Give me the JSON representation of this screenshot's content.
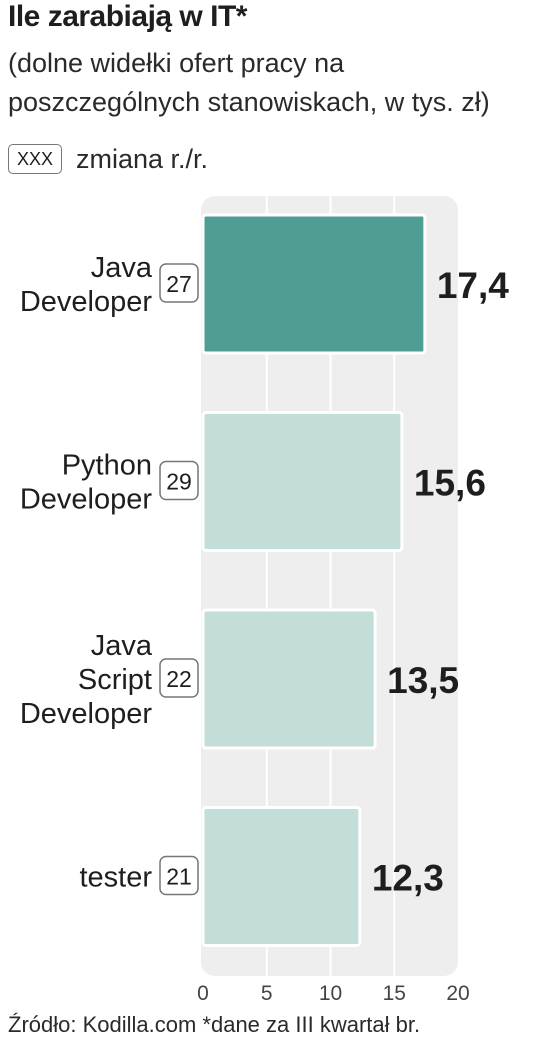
{
  "title": "Ile zarabiają w IT*",
  "subtitle": "(dolne widełki ofert pracy na poszczególnych stanowiskach, w tys. zł)",
  "legend": {
    "box_text": "XXX",
    "label": "zmiana r./r."
  },
  "source": "Źródło: Kodilla.com *dane za III kwartał br.",
  "colors": {
    "highlight_bar": "#4f9e93",
    "bar": "#c3ddd8",
    "panel": "#eeeeee",
    "grid": "#ffffff"
  },
  "chart_data": {
    "type": "bar",
    "orientation": "horizontal",
    "categories": [
      [
        "Java",
        "Developer"
      ],
      [
        "Python",
        "Developer"
      ],
      [
        "Java",
        "Script",
        "Developer"
      ],
      [
        "tester"
      ]
    ],
    "values": [
      17.4,
      15.6,
      13.5,
      12.3
    ],
    "value_labels": [
      "17,4",
      "15,6",
      "13,5",
      "12,3"
    ],
    "change_yoy": [
      "27",
      "29",
      "22",
      "21"
    ],
    "highlight_index": 0,
    "xlim": [
      0,
      20
    ],
    "xticks": [
      "0",
      "5",
      "10",
      "15",
      "20"
    ],
    "xtick_values": [
      0,
      5,
      10,
      15,
      20
    ],
    "grid": true
  }
}
